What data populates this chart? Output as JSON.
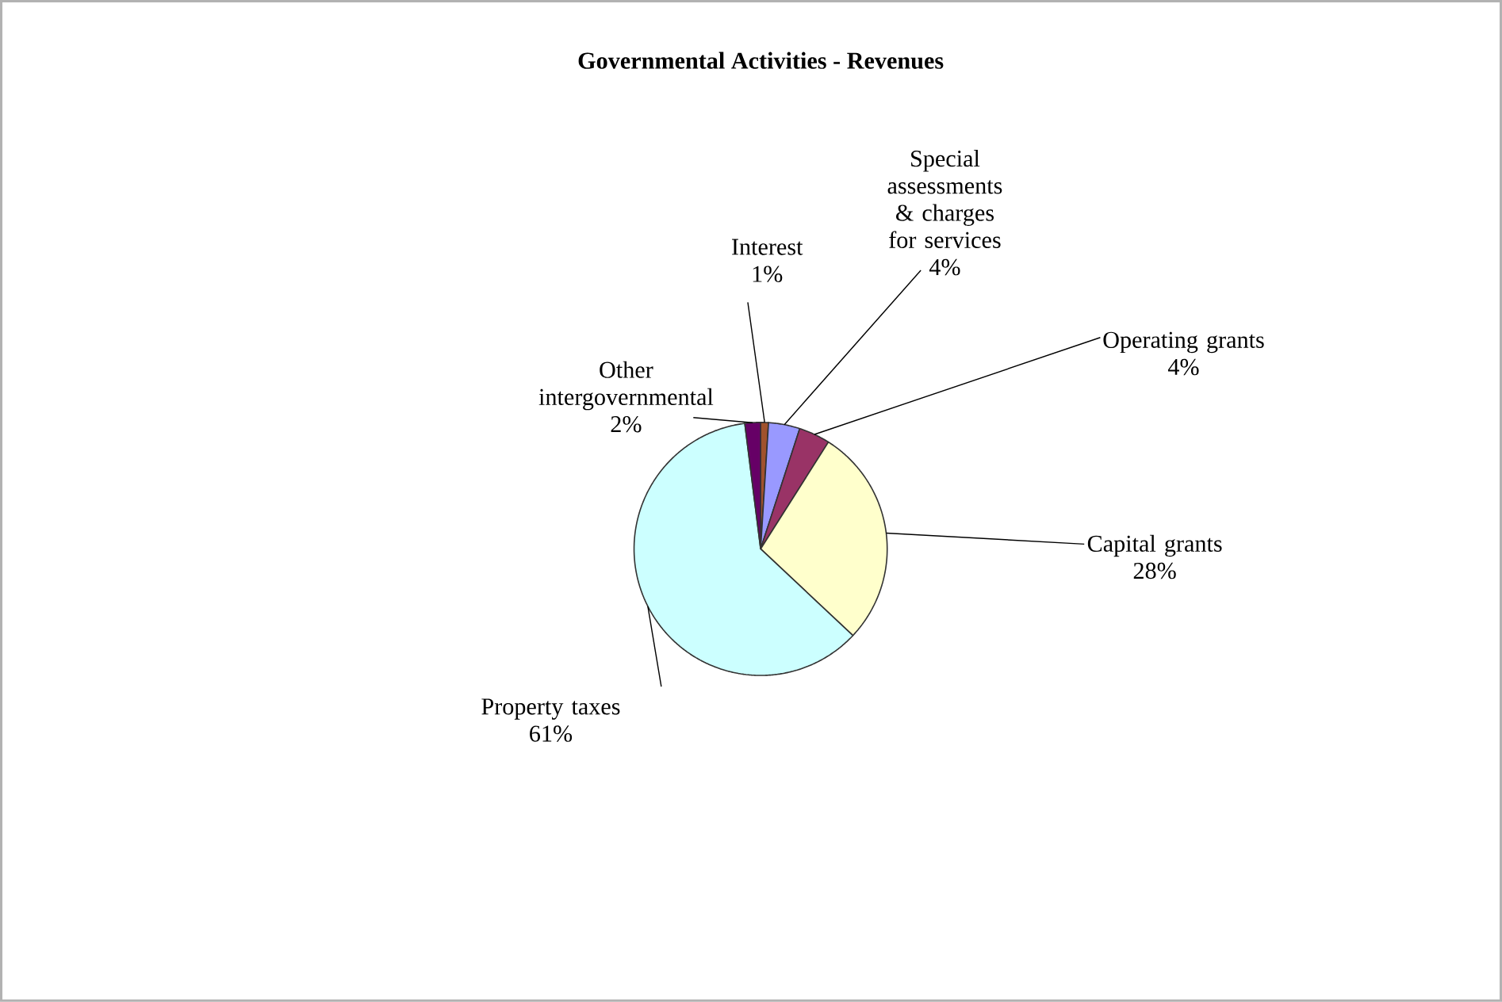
{
  "chart_data": {
    "type": "pie",
    "title": "Governmental Activities - Revenues",
    "categories": [
      "Interest",
      "Special assessments & charges for services",
      "Operating grants",
      "Capital grants",
      "Property taxes",
      "Other intergovernmental"
    ],
    "values": [
      1,
      4,
      4,
      28,
      61,
      2
    ],
    "value_labels": [
      "1%",
      "4%",
      "4%",
      "28%",
      "61%",
      "2%"
    ],
    "colors": [
      "#a0522d",
      "#9999ff",
      "#993366",
      "#ffffcc",
      "#ccffff",
      "#660066"
    ]
  }
}
